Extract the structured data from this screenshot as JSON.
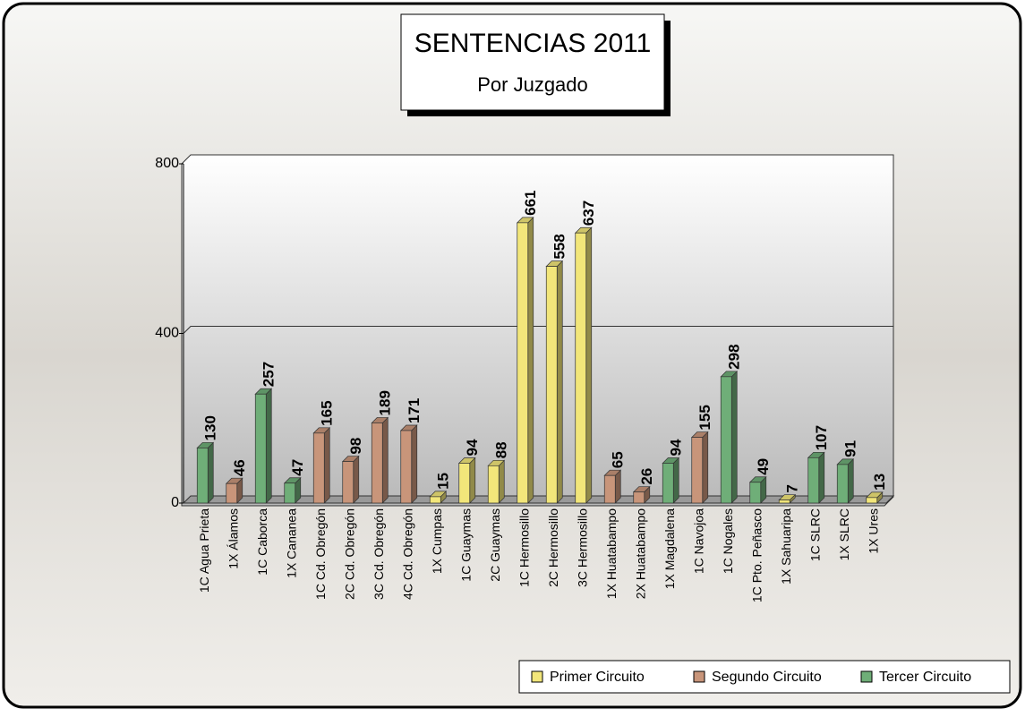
{
  "chart_data": {
    "type": "bar",
    "title": "SENTENCIAS 2011",
    "subtitle": "Por Juzgado",
    "categories": [
      "1C Agua Prieta",
      "1X Álamos",
      "1C Caborca",
      "1X Cananea",
      "1C Cd. Obregón",
      "2C Cd. Obregón",
      "3C Cd. Obregón",
      "4C Cd. Obregón",
      "1X Cumpas",
      "1C Guaymas",
      "2C Guaymas",
      "1C Hermosillo",
      "2C Hermosillo",
      "3C Hermosillo",
      "1X Huatabampo",
      "2X Huatabampo",
      "1X Magdalena",
      "1C Navojoa",
      "1C Nogales",
      "1C Pto. Peñasco",
      "1X Sahuaripa",
      "1C SLRC",
      "1X SLRC",
      "1X Ures"
    ],
    "series": [
      {
        "name": "Primer Circuito",
        "color": "#f2e67a",
        "values": [
          null,
          null,
          null,
          null,
          null,
          null,
          null,
          null,
          15,
          94,
          88,
          661,
          558,
          637,
          null,
          null,
          null,
          null,
          null,
          null,
          7,
          null,
          null,
          13
        ]
      },
      {
        "name": "Segundo Circuito",
        "color": "#c8957a",
        "values": [
          null,
          46,
          null,
          null,
          165,
          98,
          189,
          171,
          null,
          null,
          null,
          null,
          null,
          null,
          65,
          26,
          null,
          155,
          null,
          null,
          null,
          null,
          null,
          null
        ]
      },
      {
        "name": "Tercer Circuito",
        "color": "#6fae78",
        "values": [
          130,
          null,
          257,
          47,
          null,
          null,
          null,
          null,
          null,
          null,
          null,
          null,
          null,
          null,
          null,
          null,
          94,
          null,
          298,
          49,
          null,
          107,
          91,
          null
        ]
      }
    ],
    "ylim": [
      0,
      800
    ],
    "yticks": [
      0,
      400,
      800
    ],
    "grid": true,
    "legend_position": "bottom-right"
  }
}
